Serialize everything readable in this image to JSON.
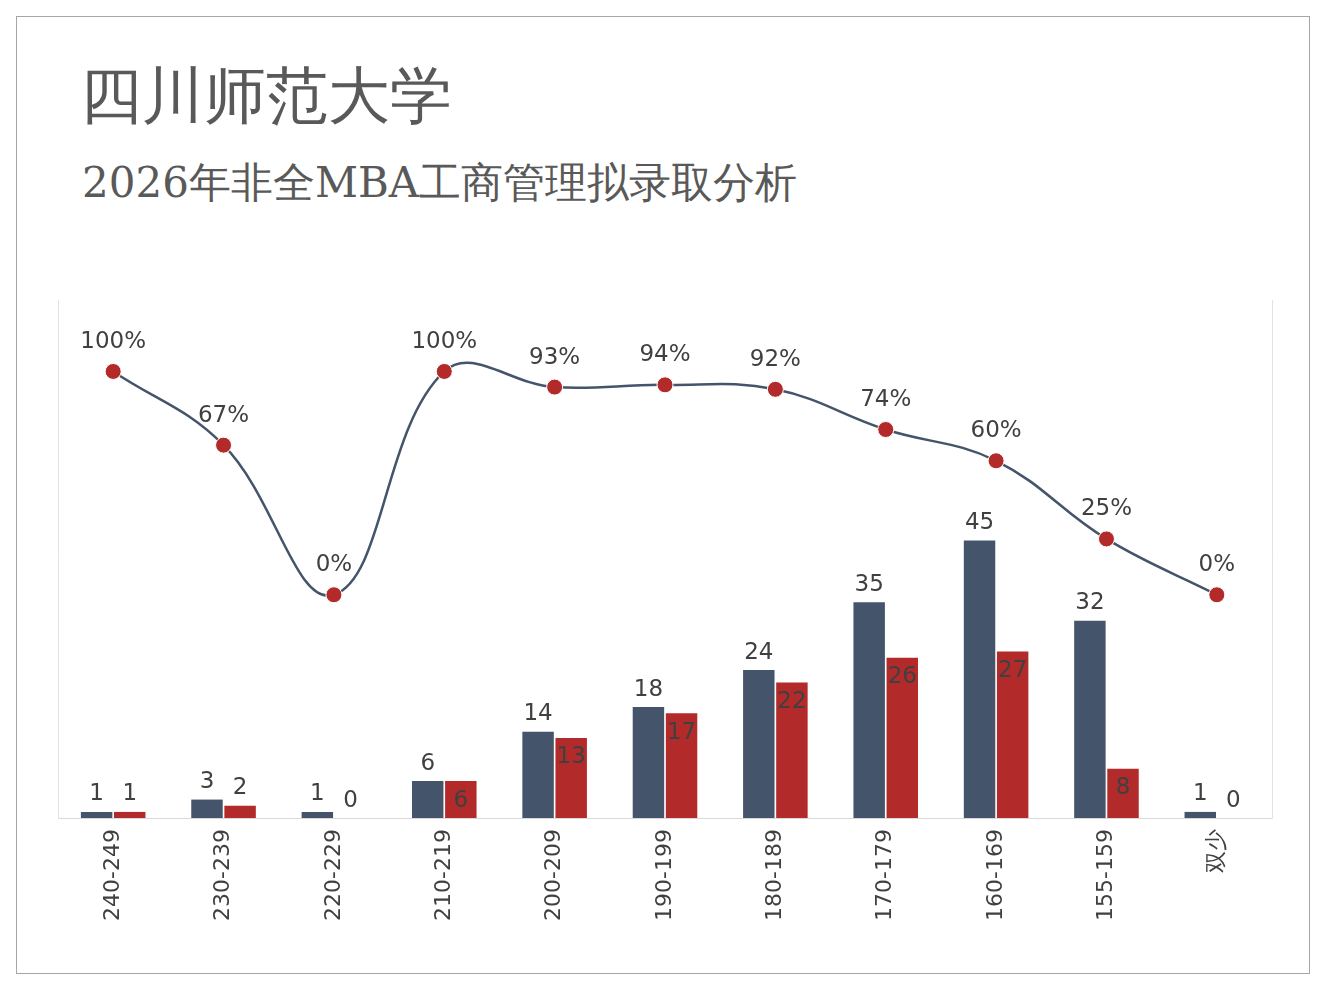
{
  "chart_data": {
    "type": "bar",
    "title": "四川师范大学",
    "subtitle": "2026年非全MBA工商管理拟录取分析",
    "categories": [
      "240-249",
      "230-239",
      "220-229",
      "210-219",
      "200-209",
      "190-199",
      "180-189",
      "170-179",
      "160-169",
      "155-159",
      "双少"
    ],
    "series": [
      {
        "color": "#44546a",
        "values": [
          1,
          3,
          1,
          6,
          14,
          18,
          24,
          35,
          45,
          32,
          1
        ]
      },
      {
        "color": "#b22a2a",
        "values": [
          1,
          2,
          0,
          6,
          13,
          17,
          22,
          26,
          27,
          8,
          0
        ]
      },
      {
        "type": "line",
        "axis": "y2",
        "color": "#44546a",
        "marker": "circle",
        "colors": [
          "#b22a2a",
          "#b22a2a",
          "#b22a2a",
          "#b22a2a",
          "#b22a2a",
          "#b22a2a",
          "#b22a2a",
          "#b22a2a",
          "#b22a2a",
          "#b22a2a",
          "#b22a2a"
        ],
        "values": [
          100,
          67,
          0,
          100,
          93,
          94,
          92,
          74,
          60,
          25,
          0
        ],
        "value_labels": [
          "100%",
          "67%",
          "0%",
          "100%",
          "93%",
          "94%",
          "92%",
          "74%",
          "60%",
          "25%",
          "0%"
        ]
      }
    ],
    "ylim": [
      0,
      84
    ],
    "y2lim": [
      -100,
      132
    ],
    "grid": false,
    "data_labels": true,
    "tick_labels": "x"
  }
}
